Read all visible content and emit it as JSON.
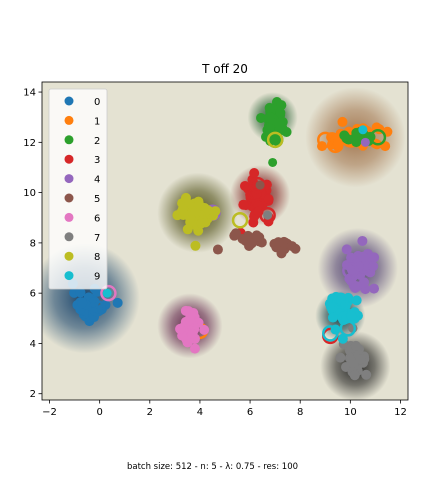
{
  "chart_data": {
    "type": "scatter",
    "title": "T off 20",
    "xlabel": "",
    "ylabel": "",
    "xlim": [
      -2.3,
      12.3
    ],
    "ylim": [
      1.75,
      14.4
    ],
    "xticks": [
      -2,
      0,
      2,
      4,
      6,
      8,
      10,
      12
    ],
    "yticks": [
      2,
      4,
      6,
      8,
      10,
      12,
      14
    ],
    "xtick_labels": [
      "−2",
      "0",
      "2",
      "4",
      "6",
      "8",
      "10",
      "12"
    ],
    "ytick_labels": [
      "2",
      "4",
      "6",
      "8",
      "10",
      "12",
      "14"
    ],
    "grid": false,
    "legend_position": "upper-left",
    "footer": "batch size: 512 - n: 5 - λ: 0.75 - res: 100",
    "background_regions": [
      {
        "class": "0",
        "x": -0.6,
        "y": 5.8,
        "r": 2.2,
        "color": "#0d3b66"
      },
      {
        "class": "1",
        "x": 10.2,
        "y": 12.2,
        "r": 2.0,
        "color": "#a0724a"
      },
      {
        "class": "2",
        "x": 6.9,
        "y": 13.0,
        "r": 1.0,
        "color": "#1c5a2a"
      },
      {
        "class": "3",
        "x": 6.4,
        "y": 9.9,
        "r": 1.2,
        "color": "#7a1a1a"
      },
      {
        "class": "4",
        "x": 10.3,
        "y": 7.0,
        "r": 1.6,
        "color": "#4a3a6e"
      },
      {
        "class": "6",
        "x": 3.6,
        "y": 4.7,
        "r": 1.3,
        "color": "#5a1a44"
      },
      {
        "class": "7",
        "x": 10.2,
        "y": 3.1,
        "r": 1.4,
        "color": "#1a1a1a"
      },
      {
        "class": "8",
        "x": 3.9,
        "y": 9.2,
        "r": 1.6,
        "color": "#4a4a10"
      },
      {
        "class": "9",
        "x": 9.6,
        "y": 5.1,
        "r": 1.0,
        "color": "#0a3a44"
      }
    ],
    "series": [
      {
        "name": "0",
        "color": "#1f77b4",
        "clusters": [
          {
            "x": -0.45,
            "y": 5.5,
            "sx": 0.3,
            "sy": 0.3,
            "n": 50
          }
        ],
        "rings": [
          {
            "x": -0.1,
            "y": 5.4
          }
        ]
      },
      {
        "name": "1",
        "color": "#ff7f0e",
        "clusters": [
          {
            "x": 10.0,
            "y": 12.15,
            "sx": 0.6,
            "sy": 0.2,
            "n": 60
          }
        ],
        "rings": [
          {
            "x": 9.0,
            "y": 12.1
          },
          {
            "x": 10.5,
            "y": 12.4
          },
          {
            "x": 9.4,
            "y": 11.9
          },
          {
            "x": 4.0,
            "y": 4.5
          }
        ]
      },
      {
        "name": "2",
        "color": "#2ca02c",
        "clusters": [
          {
            "x": 7.0,
            "y": 12.8,
            "sx": 0.25,
            "sy": 0.45,
            "n": 45
          },
          {
            "x": 10.3,
            "y": 12.2,
            "sx": 0.35,
            "sy": 0.12,
            "n": 14
          }
        ],
        "rings": [
          {
            "x": 11.1,
            "y": 12.2
          },
          {
            "x": 7.0,
            "y": 12.1
          }
        ],
        "points": [
          {
            "x": 6.9,
            "y": 11.2
          }
        ]
      },
      {
        "name": "3",
        "color": "#d62728",
        "clusters": [
          {
            "x": 6.3,
            "y": 9.8,
            "sx": 0.25,
            "sy": 0.4,
            "n": 45
          }
        ],
        "rings": [
          {
            "x": 6.3,
            "y": 10.3
          },
          {
            "x": 6.7,
            "y": 9.1
          },
          {
            "x": 9.2,
            "y": 4.3
          }
        ]
      },
      {
        "name": "4",
        "color": "#9467bd",
        "clusters": [
          {
            "x": 10.4,
            "y": 7.0,
            "sx": 0.3,
            "sy": 0.35,
            "n": 45
          }
        ],
        "rings": [
          {
            "x": 10.0,
            "y": 6.9
          },
          {
            "x": 4.5,
            "y": 9.2
          }
        ],
        "points": [
          {
            "x": 10.6,
            "y": 12.0
          }
        ]
      },
      {
        "name": "5",
        "color": "#8c564b",
        "clusters": [
          {
            "x": 6.0,
            "y": 8.1,
            "sx": 0.3,
            "sy": 0.15,
            "n": 18
          },
          {
            "x": 7.4,
            "y": 7.9,
            "sx": 0.25,
            "sy": 0.12,
            "n": 14
          }
        ],
        "rings": [],
        "points": [
          {
            "x": 6.4,
            "y": 10.3
          },
          {
            "x": 10.1,
            "y": 4.6
          }
        ]
      },
      {
        "name": "6",
        "color": "#e377c2",
        "clusters": [
          {
            "x": 3.6,
            "y": 4.6,
            "sx": 0.18,
            "sy": 0.35,
            "n": 45
          }
        ],
        "rings": [
          {
            "x": 0.35,
            "y": 6.0
          }
        ]
      },
      {
        "name": "7",
        "color": "#7f7f7f",
        "clusters": [
          {
            "x": 10.2,
            "y": 3.3,
            "sx": 0.25,
            "sy": 0.3,
            "n": 40
          }
        ],
        "rings": [],
        "points": [
          {
            "x": 6.7,
            "y": 9.1
          },
          {
            "x": 10.1,
            "y": 4.6
          }
        ]
      },
      {
        "name": "8",
        "color": "#bcbd22",
        "clusters": [
          {
            "x": 3.9,
            "y": 9.1,
            "sx": 0.35,
            "sy": 0.3,
            "n": 60
          }
        ],
        "rings": [
          {
            "x": 5.6,
            "y": 8.9
          },
          {
            "x": 7.0,
            "y": 12.1
          },
          {
            "x": 3.7,
            "y": 9.4
          }
        ]
      },
      {
        "name": "9",
        "color": "#17becf",
        "clusters": [
          {
            "x": 9.7,
            "y": 5.3,
            "sx": 0.3,
            "sy": 0.35,
            "n": 50
          }
        ],
        "rings": [
          {
            "x": 9.9,
            "y": 4.6
          },
          {
            "x": 9.6,
            "y": 5.7
          },
          {
            "x": 9.2,
            "y": 4.4
          }
        ],
        "points": [
          {
            "x": 0.3,
            "y": 6.0
          },
          {
            "x": 10.5,
            "y": 12.5
          }
        ]
      }
    ]
  }
}
